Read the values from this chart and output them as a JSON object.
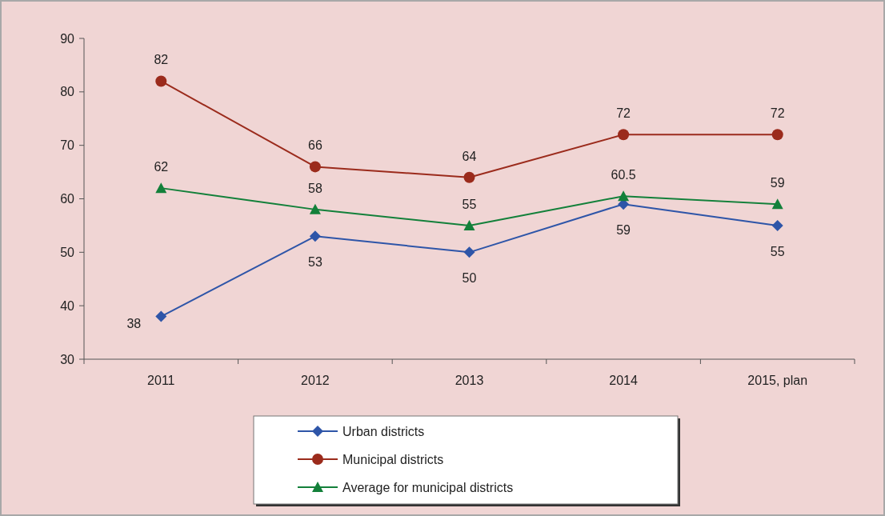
{
  "chart_data": {
    "type": "line",
    "categories": [
      "2011",
      "2012",
      "2013",
      "2014",
      "2015, plan"
    ],
    "series": [
      {
        "name": "Urban districts",
        "color": "#2e55a8",
        "marker": "diamond",
        "values": [
          38,
          53,
          50,
          59,
          55
        ]
      },
      {
        "name": "Municipal districts",
        "color": "#9b2b1c",
        "marker": "circle",
        "values": [
          82,
          66,
          64,
          72,
          72
        ]
      },
      {
        "name": "Average for municipal districts",
        "color": "#13803a",
        "marker": "triangle",
        "values": [
          62,
          58,
          55,
          60.5,
          59
        ]
      }
    ],
    "ylim": [
      30,
      90
    ],
    "yticks": [
      30,
      40,
      50,
      60,
      70,
      80,
      90
    ],
    "data_labels": true,
    "legend": "bottom",
    "grid": false
  }
}
